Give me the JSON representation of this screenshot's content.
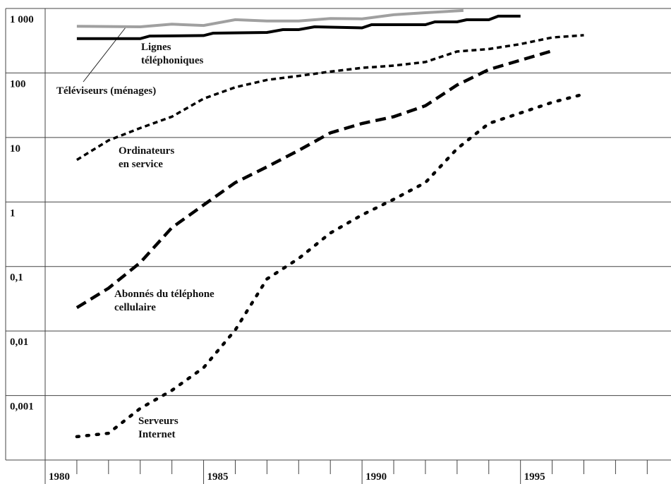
{
  "chart_data": {
    "type": "line",
    "log_scale": "y",
    "xlim": [
      1980,
      1999.75
    ],
    "xticks": [
      1980,
      1985,
      1990,
      1995
    ],
    "xminorticks": [
      1981,
      1982,
      1983,
      1984,
      1986,
      1987,
      1988,
      1989,
      1991,
      1992,
      1993,
      1994,
      1996,
      1997,
      1998,
      1999
    ],
    "ylim": [
      0.0001,
      1000
    ],
    "yticks": [
      {
        "value": 1000,
        "label": "1 000"
      },
      100,
      10,
      1,
      {
        "value": 0.1,
        "label": "0,1"
      },
      {
        "value": 0.01,
        "label": "0,01"
      },
      {
        "value": 0.001,
        "label": "0,001"
      }
    ],
    "grid": true,
    "series": [
      {
        "name": "Téléviseurs (ménages)",
        "color": "#a0a0a0",
        "style": "solid",
        "x": [
          1981,
          1983,
          1984,
          1985,
          1986,
          1987,
          1988,
          1989,
          1990,
          1991,
          1992,
          1993.2
        ],
        "values": [
          530,
          520,
          570,
          545,
          670,
          640,
          640,
          700,
          690,
          800,
          860,
          930
        ]
      },
      {
        "name": "Lignes\ntéléphoniques",
        "color": "#000000",
        "style": "solid",
        "x": [
          1981,
          1983,
          1983.3,
          1985,
          1985.3,
          1987,
          1987.5,
          1988,
          1988.5,
          1990,
          1990.3,
          1992,
          1992.3,
          1993,
          1993.3,
          1994,
          1994.3,
          1995
        ],
        "values": [
          340,
          340,
          374,
          380,
          414,
          425,
          470,
          470,
          520,
          500,
          560,
          560,
          620,
          620,
          668,
          668,
          759,
          759
        ]
      },
      {
        "name": "Ordinateurs\nen service",
        "color": "#000000",
        "style": "short-dash",
        "x": [
          1981,
          1982,
          1983,
          1984,
          1985,
          1986,
          1987,
          1988,
          1989,
          1990,
          1991,
          1992,
          1993,
          1994,
          1995,
          1996,
          1997
        ],
        "values": [
          4.5,
          9,
          14,
          21,
          40,
          60,
          78,
          90,
          105,
          120,
          130,
          148,
          215,
          235,
          280,
          355,
          385
        ]
      },
      {
        "name": "Abonnés du téléphone\ncellulaire",
        "color": "#000000",
        "style": "long-dash",
        "x": [
          1981,
          1982,
          1983,
          1984,
          1985,
          1986,
          1987,
          1988,
          1989,
          1990,
          1991,
          1992,
          1993,
          1994,
          1995,
          1996
        ],
        "values": [
          0.023,
          0.046,
          0.115,
          0.4,
          0.9,
          2.0,
          3.5,
          6.3,
          11.8,
          16.5,
          21,
          31,
          65,
          113,
          158,
          220
        ]
      },
      {
        "name": "Serveurs\nInternet",
        "color": "#000000",
        "style": "dotted",
        "x": [
          1981,
          1982,
          1983,
          1984,
          1985,
          1986,
          1987,
          1988,
          1989,
          1990,
          1991,
          1992,
          1993,
          1994,
          1995,
          1996,
          1997
        ],
        "values": [
          0.00023,
          0.00026,
          0.00063,
          0.0012,
          0.0027,
          0.0104,
          0.064,
          0.133,
          0.33,
          0.63,
          1.1,
          2.0,
          6.7,
          16.5,
          24,
          35,
          47
        ]
      }
    ]
  }
}
